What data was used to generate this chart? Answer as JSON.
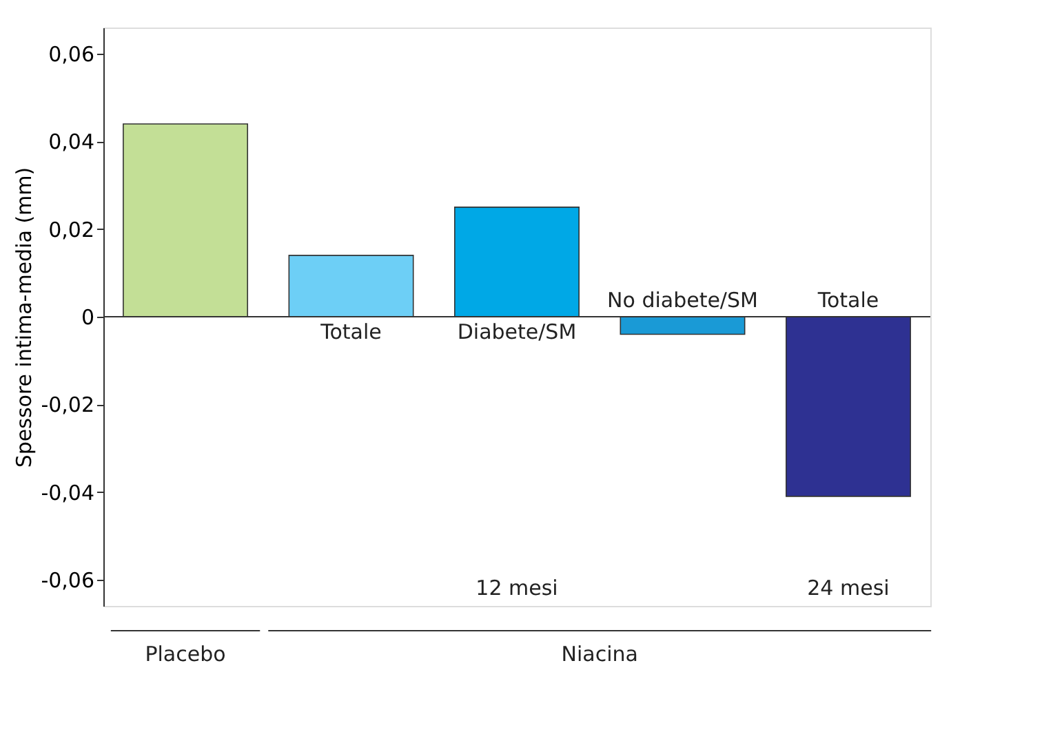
{
  "chart_data": {
    "type": "bar",
    "ylabel": "Spessore intima-media (mm)",
    "categories": [
      null,
      "Totale",
      "Diabete/SM",
      "No diabete/SM",
      "Totale"
    ],
    "values": [
      0.044,
      0.014,
      0.025,
      -0.004,
      -0.041
    ],
    "colors": [
      "#c3df96",
      "#6dcff6",
      "#00a8e6",
      "#1a9ad6",
      "#2e3192"
    ],
    "ylim": [
      -0.066,
      0.066
    ],
    "yticks": [
      {
        "value": -0.06,
        "label": "-0,06"
      },
      {
        "value": -0.04,
        "label": "-0,04"
      },
      {
        "value": -0.02,
        "label": "-0,02"
      },
      0,
      {
        "value": 0.02,
        "label": "0,02"
      },
      {
        "value": 0.04,
        "label": "0,04"
      },
      {
        "value": 0.06,
        "label": "0,06"
      }
    ],
    "grid": false,
    "tick_labels": "y",
    "annotations": [
      "Placebo",
      "Niacina",
      "12 mesi",
      "24 mesi"
    ]
  }
}
